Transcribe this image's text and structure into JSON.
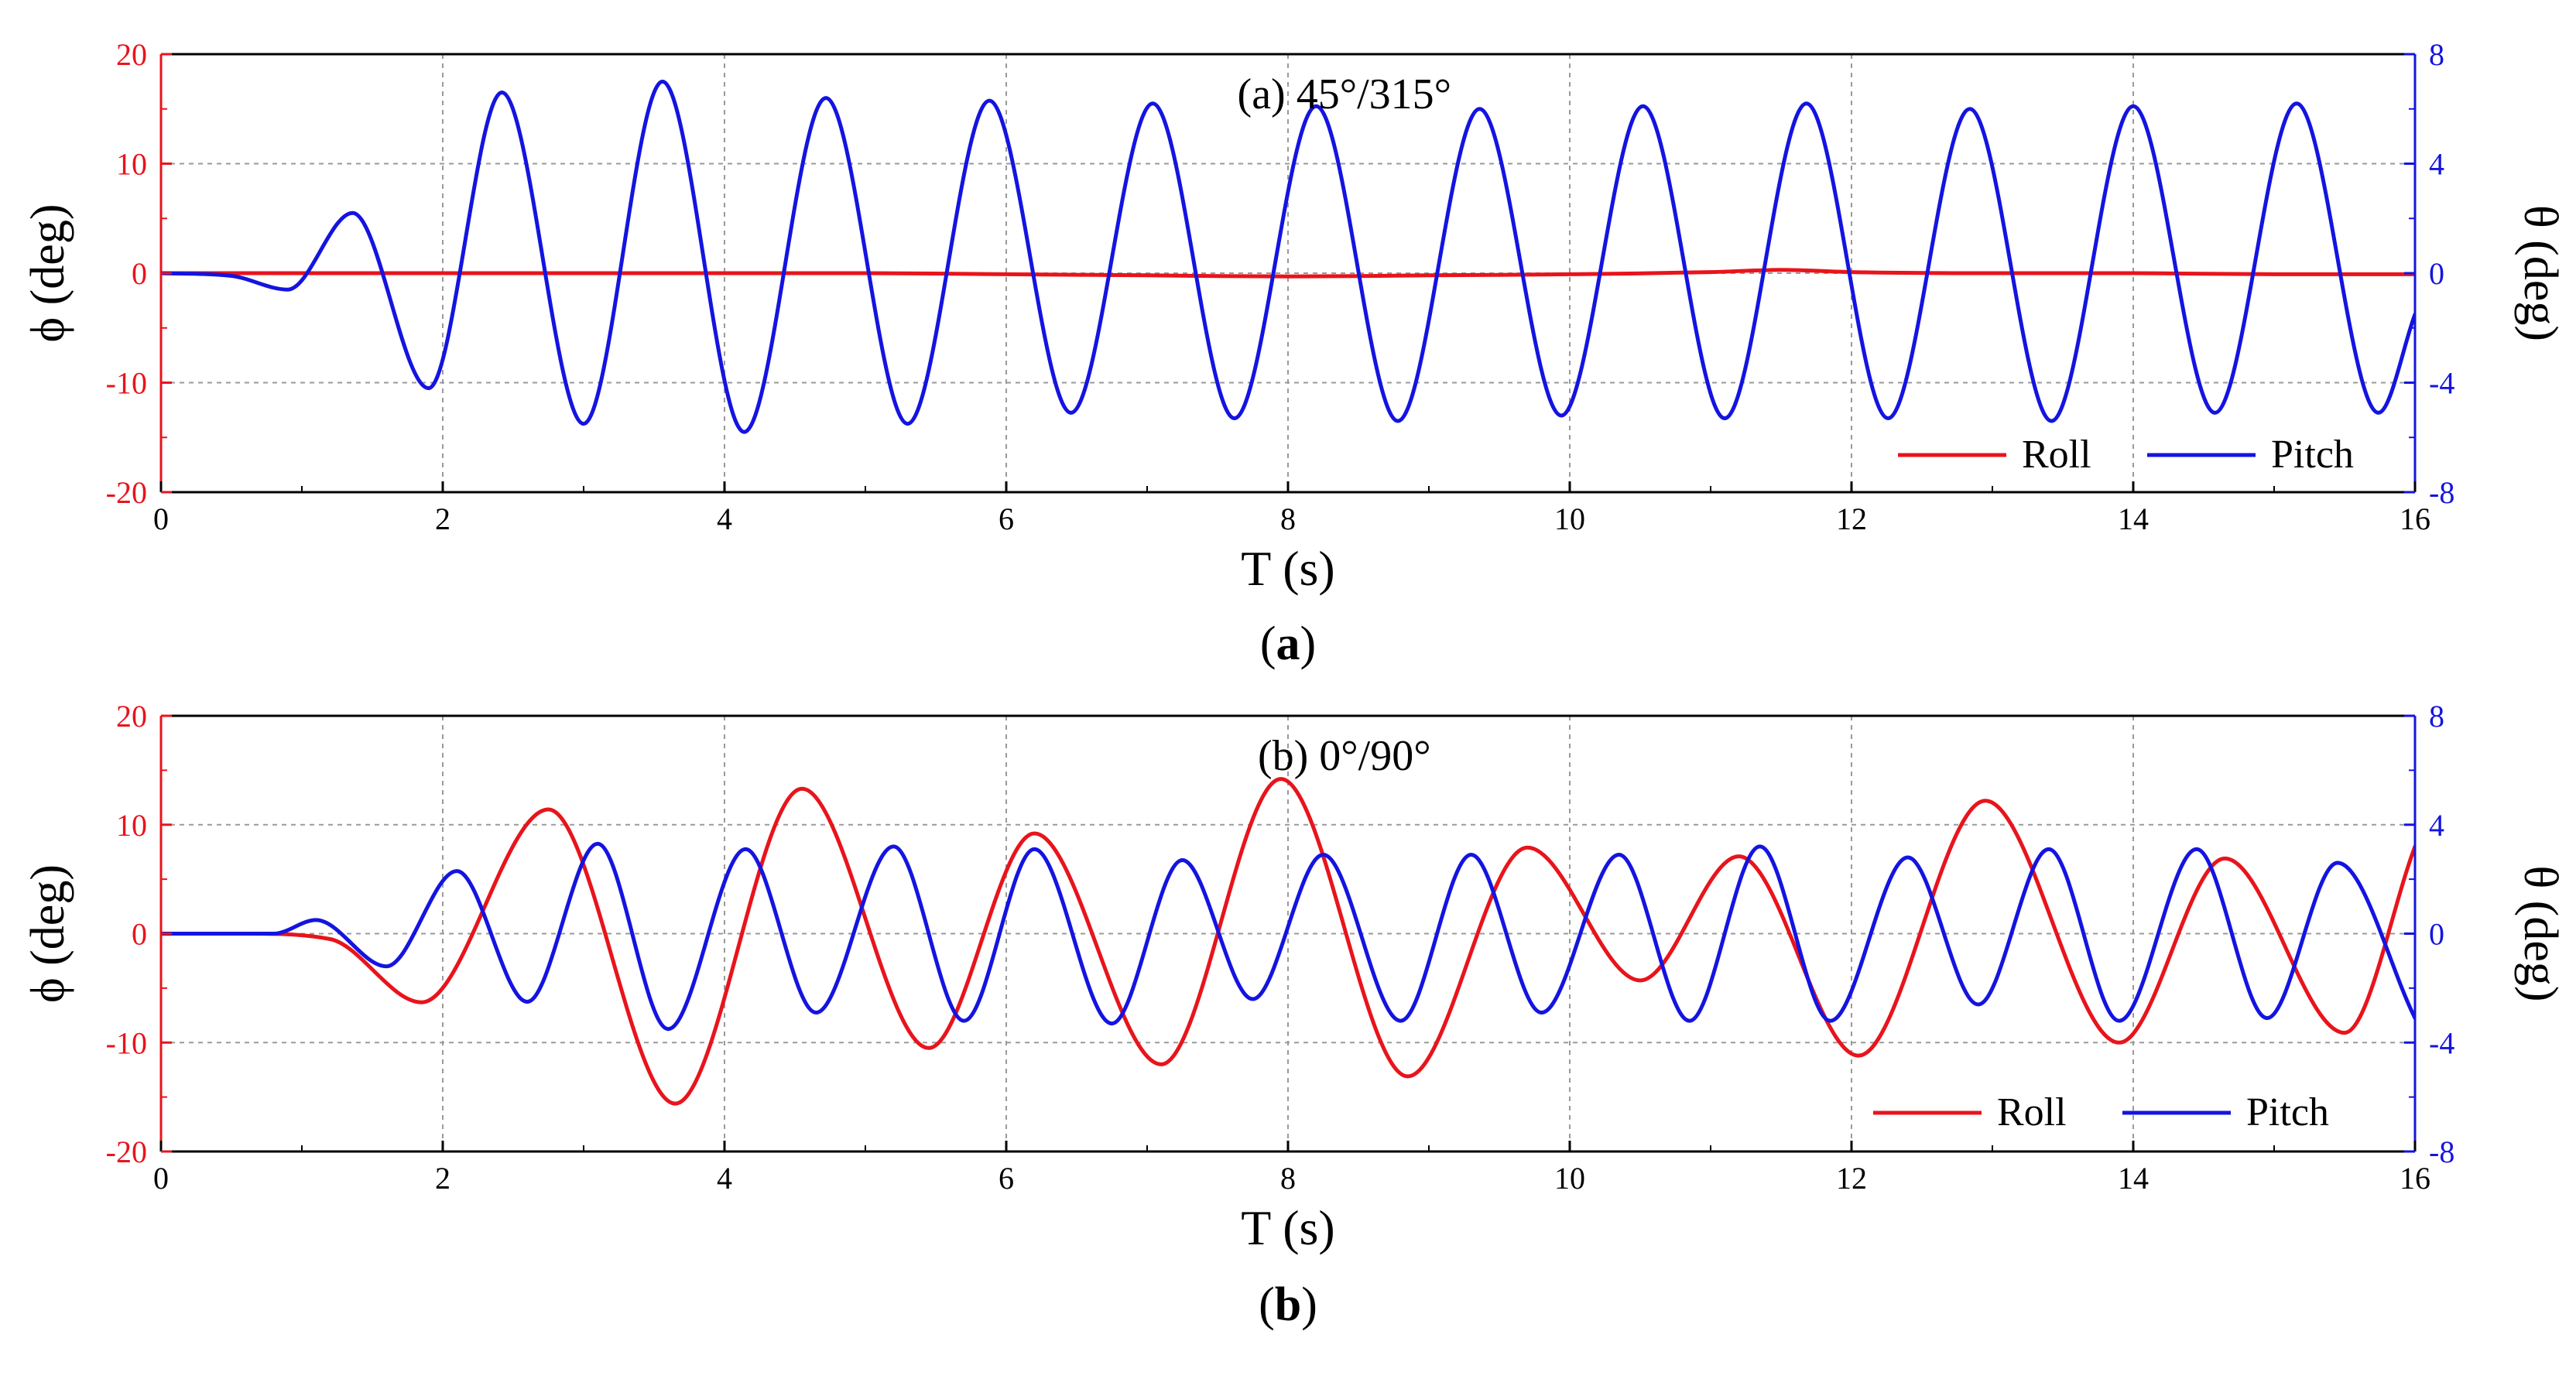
{
  "colors": {
    "roll": "#e8141c",
    "pitch": "#1414e0",
    "grid": "#9a9a9a",
    "axis": "#000000"
  },
  "chart_data": [
    {
      "id": "a",
      "type": "line",
      "title": "(a) 45°/315°",
      "caption_open": "(",
      "caption_letter": "a",
      "caption_close": ")",
      "xlabel": "T (s)",
      "ylabel_left": "ϕ (deg)",
      "ylabel_right": "θ (deg)",
      "xlim": [
        0,
        16
      ],
      "ylim_left": [
        -20,
        20
      ],
      "ylim_right": [
        -8,
        8
      ],
      "xticks": [
        "0",
        "2",
        "4",
        "6",
        "8",
        "10",
        "12",
        "14",
        "16"
      ],
      "yticks_left": [
        "20",
        "10",
        "0",
        "-10",
        "-20"
      ],
      "yticks_right": [
        "8",
        "4",
        "0",
        "-4",
        "-8"
      ],
      "grid": true,
      "legend": "bottom-right",
      "series": [
        {
          "name": "Roll",
          "axis": "left",
          "color": "#e8141c",
          "x": [
            0,
            1,
            2,
            3,
            4,
            5,
            6,
            7,
            8,
            9,
            10,
            11,
            11.5,
            12,
            13,
            14,
            15,
            16
          ],
          "y": [
            0,
            0,
            0,
            0,
            0,
            0,
            -0.1,
            -0.2,
            -0.3,
            -0.2,
            -0.1,
            0.1,
            0.3,
            0.1,
            0,
            0,
            -0.1,
            -0.1
          ]
        },
        {
          "name": "Pitch",
          "axis": "right",
          "color": "#1414e0",
          "x": [
            0,
            0.5,
            0.9,
            1.36,
            1.9,
            2.42,
            3.0,
            3.56,
            4.14,
            4.72,
            5.3,
            5.88,
            6.46,
            7.04,
            7.62,
            8.2,
            8.78,
            9.36,
            9.94,
            10.52,
            11.1,
            11.68,
            12.26,
            12.84,
            13.42,
            14.0,
            14.58,
            15.16,
            15.74,
            16.0
          ],
          "y": [
            0,
            -0.1,
            -0.6,
            2.2,
            -4.2,
            6.6,
            -5.5,
            7.0,
            -5.8,
            6.4,
            -5.5,
            6.3,
            -5.1,
            6.2,
            -5.3,
            6.1,
            -5.4,
            6.0,
            -5.2,
            6.1,
            -5.3,
            6.2,
            -5.3,
            6.0,
            -5.4,
            6.1,
            -5.1,
            6.2,
            -5.1,
            -1.5
          ]
        }
      ]
    },
    {
      "id": "b",
      "type": "line",
      "title": "(b) 0°/90°",
      "caption_open": "(",
      "caption_letter": "b",
      "caption_close": ")",
      "xlabel": "T (s)",
      "ylabel_left": "ϕ (deg)",
      "ylabel_right": "θ (deg)",
      "xlim": [
        0,
        16
      ],
      "ylim_left": [
        -20,
        20
      ],
      "ylim_right": [
        -8,
        8
      ],
      "xticks": [
        "0",
        "2",
        "4",
        "6",
        "8",
        "10",
        "12",
        "14",
        "16"
      ],
      "yticks_left": [
        "20",
        "10",
        "0",
        "-10",
        "-20"
      ],
      "yticks_right": [
        "8",
        "4",
        "0",
        "-4",
        "-8"
      ],
      "grid": true,
      "legend": "bottom-right",
      "series": [
        {
          "name": "Roll",
          "axis": "left",
          "color": "#e8141c",
          "x": [
            0,
            0.6,
            1.2,
            1.85,
            2.75,
            3.65,
            4.55,
            5.45,
            6.2,
            7.1,
            7.95,
            8.85,
            9.7,
            10.5,
            11.2,
            12.05,
            12.95,
            13.9,
            14.65,
            15.5,
            16.0
          ],
          "y": [
            0,
            0,
            -0.5,
            -6.3,
            11.4,
            -15.6,
            13.3,
            -10.5,
            9.2,
            -12.0,
            14.2,
            -13.1,
            7.9,
            -4.3,
            7.1,
            -11.2,
            12.2,
            -10.0,
            6.9,
            -9.1,
            8.0
          ]
        },
        {
          "name": "Pitch",
          "axis": "right",
          "color": "#1414e0",
          "x": [
            0,
            0.8,
            1.1,
            1.6,
            2.1,
            2.6,
            3.1,
            3.6,
            4.15,
            4.65,
            5.2,
            5.7,
            6.2,
            6.75,
            7.25,
            7.75,
            8.25,
            8.8,
            9.3,
            9.8,
            10.35,
            10.85,
            11.35,
            11.85,
            12.4,
            12.9,
            13.4,
            13.9,
            14.45,
            14.95,
            15.45,
            16.0
          ],
          "y": [
            0,
            0,
            0.5,
            -1.2,
            2.3,
            -2.5,
            3.3,
            -3.5,
            3.1,
            -2.9,
            3.2,
            -3.2,
            3.1,
            -3.3,
            2.7,
            -2.4,
            2.9,
            -3.2,
            2.9,
            -2.9,
            2.9,
            -3.2,
            3.2,
            -3.2,
            2.8,
            -2.6,
            3.1,
            -3.2,
            3.1,
            -3.1,
            2.6,
            -3.1
          ]
        }
      ]
    }
  ]
}
